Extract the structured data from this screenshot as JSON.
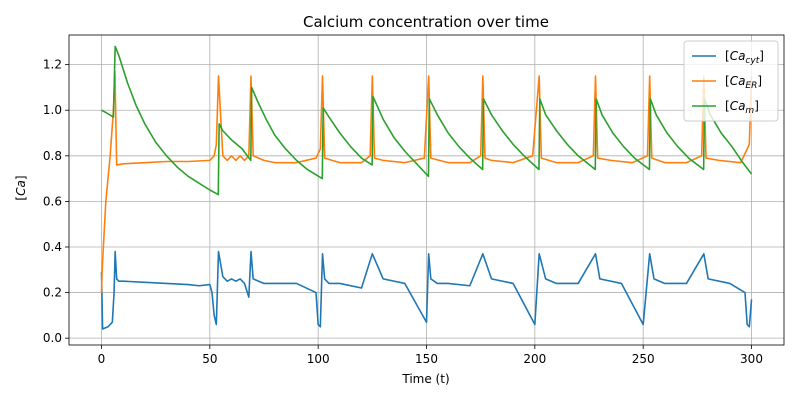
{
  "chart_data": {
    "type": "line",
    "title": "Calcium concentration over time",
    "xlabel": "Time (t)",
    "ylabel": "[Ca]",
    "xlim": [
      -15,
      315
    ],
    "ylim": [
      -0.03,
      1.33
    ],
    "xticks": [
      0,
      50,
      100,
      150,
      200,
      250,
      300
    ],
    "yticks": [
      0.0,
      0.2,
      0.4,
      0.6,
      0.8,
      1.0,
      1.2
    ],
    "grid": true,
    "legend_position": "top-right",
    "spike_times": [
      54,
      69,
      102,
      125,
      151,
      176,
      202,
      228,
      253,
      278
    ],
    "series": [
      {
        "name": "[Ca_cyt]",
        "base": "Ca",
        "sub": "cyt",
        "color": "#1f77b4",
        "x": [
          0,
          0.5,
          3,
          5,
          5.8,
          6.3,
          7,
          8,
          10,
          20,
          30,
          40,
          45,
          50,
          51,
          52,
          53,
          54,
          56,
          58,
          60,
          62,
          64,
          66,
          68,
          69,
          70,
          75,
          80,
          90,
          99,
          100,
          101,
          102,
          103,
          105,
          110,
          120,
          125,
          130,
          140,
          150,
          151,
          152,
          155,
          160,
          170,
          176,
          180,
          190,
          200,
          202,
          205,
          210,
          220,
          228,
          230,
          240,
          250,
          253,
          255,
          260,
          270,
          278,
          280,
          290,
          297,
          298,
          299,
          300
        ],
        "y": [
          0.29,
          0.04,
          0.05,
          0.07,
          0.2,
          0.38,
          0.26,
          0.25,
          0.25,
          0.245,
          0.24,
          0.235,
          0.23,
          0.235,
          0.2,
          0.1,
          0.06,
          0.38,
          0.27,
          0.25,
          0.26,
          0.25,
          0.26,
          0.24,
          0.18,
          0.38,
          0.26,
          0.24,
          0.24,
          0.24,
          0.2,
          0.06,
          0.05,
          0.37,
          0.26,
          0.24,
          0.24,
          0.22,
          0.37,
          0.26,
          0.24,
          0.07,
          0.37,
          0.26,
          0.24,
          0.24,
          0.23,
          0.37,
          0.26,
          0.24,
          0.06,
          0.37,
          0.26,
          0.24,
          0.24,
          0.37,
          0.26,
          0.24,
          0.06,
          0.37,
          0.26,
          0.24,
          0.24,
          0.37,
          0.26,
          0.24,
          0.2,
          0.06,
          0.05,
          0.17
        ]
      },
      {
        "name": "[Ca_ER]",
        "base": "Ca",
        "sub": "ER",
        "color": "#ff7f0e",
        "x": [
          0,
          0.3,
          2,
          4,
          5.5,
          6.2,
          7,
          10,
          20,
          30,
          40,
          50,
          52,
          53,
          54,
          56,
          58,
          60,
          62,
          64,
          66,
          68,
          69,
          70,
          75,
          80,
          90,
          99,
          101,
          102,
          103,
          110,
          120,
          124,
          125,
          126,
          130,
          140,
          149,
          151,
          152,
          160,
          170,
          175,
          176,
          177,
          180,
          190,
          199,
          202,
          203,
          210,
          220,
          227,
          228,
          229,
          235,
          245,
          252,
          253,
          254,
          260,
          270,
          277,
          278,
          279,
          285,
          295,
          299,
          300
        ],
        "y": [
          0.2,
          0.3,
          0.6,
          0.8,
          1.0,
          1.17,
          0.76,
          0.765,
          0.77,
          0.775,
          0.775,
          0.78,
          0.8,
          0.85,
          1.15,
          0.8,
          0.78,
          0.8,
          0.78,
          0.8,
          0.78,
          0.8,
          1.15,
          0.8,
          0.78,
          0.77,
          0.77,
          0.79,
          0.83,
          1.15,
          0.79,
          0.77,
          0.77,
          0.8,
          1.15,
          0.79,
          0.78,
          0.77,
          0.79,
          1.15,
          0.79,
          0.77,
          0.77,
          0.8,
          1.15,
          0.79,
          0.78,
          0.77,
          0.8,
          1.15,
          0.79,
          0.77,
          0.77,
          0.8,
          1.15,
          0.79,
          0.78,
          0.77,
          0.8,
          1.15,
          0.79,
          0.77,
          0.77,
          0.8,
          1.15,
          0.79,
          0.78,
          0.77,
          0.85,
          1.15
        ]
      },
      {
        "name": "[Ca_m]",
        "base": "Ca",
        "sub": "m",
        "color": "#2ca02c",
        "x": [
          0,
          2,
          5.5,
          6.3,
          8,
          12,
          16,
          20,
          25,
          30,
          35,
          40,
          45,
          50,
          53.9,
          54.3,
          56,
          60,
          65,
          68.9,
          69.3,
          72,
          76,
          80,
          85,
          90,
          95,
          101.9,
          102.3,
          105,
          110,
          115,
          120,
          124.9,
          125.3,
          130,
          135,
          140,
          150.9,
          151.3,
          155,
          160,
          165,
          170,
          175.9,
          176.3,
          180,
          185,
          190,
          195,
          201.9,
          202.3,
          205,
          210,
          215,
          220,
          227.9,
          228.3,
          231,
          236,
          241,
          246,
          252.9,
          253.3,
          256,
          261,
          266,
          271,
          277.9,
          278.3,
          281,
          286,
          291,
          296,
          300
        ],
        "y": [
          1.0,
          0.99,
          0.97,
          1.28,
          1.24,
          1.12,
          1.02,
          0.94,
          0.86,
          0.8,
          0.75,
          0.71,
          0.68,
          0.65,
          0.63,
          0.94,
          0.91,
          0.87,
          0.83,
          0.78,
          1.1,
          1.04,
          0.96,
          0.89,
          0.83,
          0.78,
          0.74,
          0.7,
          1.01,
          0.97,
          0.9,
          0.84,
          0.79,
          0.76,
          1.06,
          0.96,
          0.88,
          0.82,
          0.71,
          1.05,
          0.98,
          0.9,
          0.84,
          0.79,
          0.74,
          1.05,
          0.98,
          0.91,
          0.85,
          0.8,
          0.74,
          1.05,
          0.98,
          0.91,
          0.85,
          0.8,
          0.74,
          1.05,
          0.98,
          0.9,
          0.84,
          0.79,
          0.74,
          1.05,
          0.98,
          0.9,
          0.84,
          0.79,
          0.74,
          1.05,
          0.98,
          0.9,
          0.84,
          0.77,
          0.72
        ]
      }
    ]
  }
}
